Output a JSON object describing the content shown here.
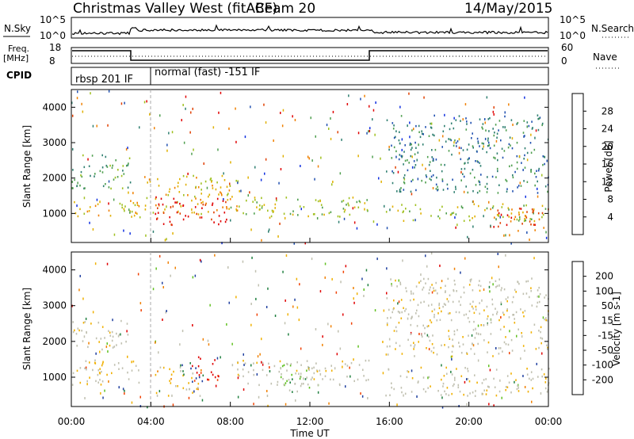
{
  "header": {
    "title": "Christmas Valley West (fitACF)",
    "beam": "Beam 20",
    "date": "14/May/2015"
  },
  "top_panels": {
    "nsky_label": "N.Sky",
    "nsearch_label": "N.Search",
    "nsky_ticks": [
      "10^5",
      "10^0"
    ],
    "nsky_right_ticks": [
      "10^5",
      "10^0"
    ],
    "freq_label": "Freq.",
    "freq_unit": "[MHz]",
    "freq_ticks": [
      "18",
      "8"
    ],
    "nave_ticks": [
      "60",
      "0"
    ],
    "nave_label": "Nave",
    "cpid_label": "CPID",
    "cpid_segments": [
      "rbsp 201 IF",
      "normal (fast) -151 IF"
    ]
  },
  "colors": {
    "power_scale": [
      "#1030e0",
      "#2050b0",
      "#2f7f70",
      "#4f9f4f",
      "#a0c020",
      "#e0b000",
      "#f08000",
      "#e04000",
      "#e00000"
    ],
    "velocity_scale": [
      "#e00000",
      "#f04000",
      "#f08000",
      "#f0b000",
      "#c0c0b0",
      "#c0c0b0",
      "#60c020",
      "#208040",
      "#2040a0"
    ]
  },
  "chart_data": [
    {
      "type": "heatmap",
      "name": "power",
      "ylabel": "Slant Range [km]",
      "ylim": [
        180,
        4500
      ],
      "yticks": [
        "4000",
        "3000",
        "2000",
        "1000"
      ],
      "colorbar_label": "Power [dB]",
      "colorbar_ticks": [
        "28",
        "24",
        "20",
        "16",
        "12",
        "8",
        "4"
      ],
      "bands": [
        {
          "t": [
            0.0,
            3.0
          ],
          "r": [
            1700,
            2700
          ],
          "level": 3
        },
        {
          "t": [
            0.0,
            3.6
          ],
          "r": [
            900,
            1400
          ],
          "level": 5
        },
        {
          "t": [
            3.6,
            8.5
          ],
          "r": [
            1000,
            2100
          ],
          "level": 5
        },
        {
          "t": [
            4.2,
            7.8
          ],
          "r": [
            700,
            1500
          ],
          "level": 8
        },
        {
          "t": [
            8.0,
            15.0
          ],
          "r": [
            900,
            1500
          ],
          "level": 4
        },
        {
          "t": [
            15.8,
            24.0
          ],
          "r": [
            800,
            1300
          ],
          "level": 4
        },
        {
          "t": [
            21.0,
            24.0
          ],
          "r": [
            500,
            1200
          ],
          "level": 7
        },
        {
          "t": [
            15.8,
            24.0
          ],
          "r": [
            1600,
            3800
          ],
          "level": 2
        }
      ]
    },
    {
      "type": "heatmap",
      "name": "velocity",
      "ylabel": "Slant Range [km]",
      "ylim": [
        180,
        4500
      ],
      "yticks": [
        "4000",
        "3000",
        "2000",
        "1000"
      ],
      "xlabel": "Time UT",
      "xticks": [
        "00:00",
        "04:00",
        "08:00",
        "12:00",
        "16:00",
        "20:00",
        "00:00"
      ],
      "colorbar_label": "Velocity [m s-1]",
      "colorbar_ticks": [
        "200",
        "100",
        "50",
        "15",
        "-15",
        "-50",
        "-100",
        "-200"
      ],
      "bands": [
        {
          "t": [
            0.0,
            3.0
          ],
          "r": [
            1800,
            2600
          ],
          "level": 4
        },
        {
          "t": [
            0.0,
            3.6
          ],
          "r": [
            800,
            1500
          ],
          "level": 4
        },
        {
          "t": [
            4.2,
            6.5
          ],
          "r": [
            500,
            1300
          ],
          "level": 3
        },
        {
          "t": [
            6.0,
            7.5
          ],
          "r": [
            900,
            1600
          ],
          "level": 0
        },
        {
          "t": [
            5.5,
            6.6
          ],
          "r": [
            900,
            1500
          ],
          "level": 8
        },
        {
          "t": [
            10.5,
            12.5
          ],
          "r": [
            600,
            1400
          ],
          "level": 6
        },
        {
          "t": [
            8.0,
            15.0
          ],
          "r": [
            800,
            1500
          ],
          "level": 4
        },
        {
          "t": [
            15.8,
            24.0
          ],
          "r": [
            500,
            1300
          ],
          "level": 4
        },
        {
          "t": [
            15.8,
            24.0
          ],
          "r": [
            1600,
            3800
          ],
          "level": 4
        }
      ]
    }
  ]
}
